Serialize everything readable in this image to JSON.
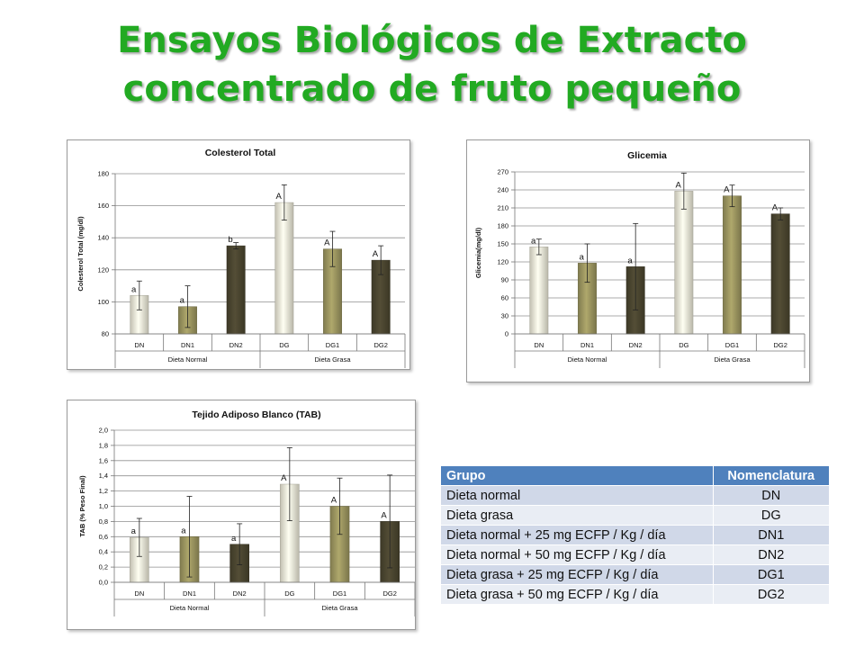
{
  "slide": {
    "title_line1": "Ensayos Biológicos de Extracto",
    "title_line2": "concentrado de fruto pequeño"
  },
  "colors": {
    "title": "#22aa22",
    "DN": "#ece9d8",
    "DN1": "#9c9660",
    "DN2": "#4b4630",
    "DG": "#ece9d8",
    "DG1": "#9c9660",
    "DG2": "#4b4630",
    "table_header": "#4f81bd",
    "table_row_odd": "#d0d8e8",
    "table_row_even": "#e9edf4"
  },
  "chart_data": [
    {
      "type": "bar",
      "title": "Colesterol Total",
      "ylabel": "Colesterol Total (mg/dl)",
      "xlabel": "",
      "categories": [
        "DN",
        "DN1",
        "DN2",
        "DG",
        "DG1",
        "DG2"
      ],
      "groups": [
        "Dieta Normal",
        "Dieta Grasa"
      ],
      "values": [
        104,
        97,
        135,
        162,
        133,
        126
      ],
      "errors": [
        9,
        13,
        2,
        11,
        11,
        9
      ],
      "annotations": [
        "a",
        "a",
        "b",
        "A",
        "A",
        "A"
      ],
      "ylim": [
        80,
        180
      ],
      "yticks": [
        80,
        100,
        120,
        140,
        160,
        180
      ],
      "grid": true
    },
    {
      "type": "bar",
      "title": "Glicemia",
      "ylabel": "Glicemia(mg/dl)",
      "xlabel": "",
      "categories": [
        "DN",
        "DN1",
        "DN2",
        "DG",
        "DG1",
        "DG2"
      ],
      "groups": [
        "Dieta Normal",
        "Dieta Grasa"
      ],
      "values": [
        145,
        118,
        112,
        238,
        230,
        200
      ],
      "errors": [
        13,
        32,
        72,
        30,
        18,
        10
      ],
      "annotations": [
        "a",
        "a",
        "a",
        "A",
        "A",
        "A"
      ],
      "ylim": [
        0,
        270
      ],
      "yticks": [
        0,
        30,
        60,
        90,
        120,
        150,
        180,
        210,
        240,
        270
      ],
      "grid": true
    },
    {
      "type": "bar",
      "title": "Tejido Adiposo Blanco (TAB)",
      "ylabel": "TAB (% Peso Final)",
      "xlabel": "",
      "categories": [
        "DN",
        "DN1",
        "DN2",
        "DG",
        "DG1",
        "DG2"
      ],
      "groups": [
        "Dieta Normal",
        "Dieta Grasa"
      ],
      "values": [
        0.59,
        0.6,
        0.5,
        1.29,
        1.0,
        0.8
      ],
      "errors": [
        0.25,
        0.53,
        0.27,
        0.48,
        0.37,
        0.61
      ],
      "annotations": [
        "a",
        "a",
        "a",
        "A",
        "A",
        "A"
      ],
      "ylim": [
        0,
        2
      ],
      "yticks": [
        "0,0",
        "0,2",
        "0,4",
        "0,6",
        "0,8",
        "1,0",
        "1,2",
        "1,4",
        "1,6",
        "1,8",
        "2,0"
      ],
      "grid": true
    }
  ],
  "table": {
    "headers": [
      "Grupo",
      "Nomenclatura"
    ],
    "rows": [
      [
        "Dieta normal",
        "DN"
      ],
      [
        "Dieta grasa",
        "DG"
      ],
      [
        "Dieta normal + 25 mg ECFP / Kg / día",
        "DN1"
      ],
      [
        "Dieta normal + 50 mg ECFP / Kg / día",
        "DN2"
      ],
      [
        "Dieta grasa + 25 mg ECFP / Kg / día",
        "DG1"
      ],
      [
        "Dieta grasa + 50 mg ECFP / Kg / día",
        "DG2"
      ]
    ]
  }
}
